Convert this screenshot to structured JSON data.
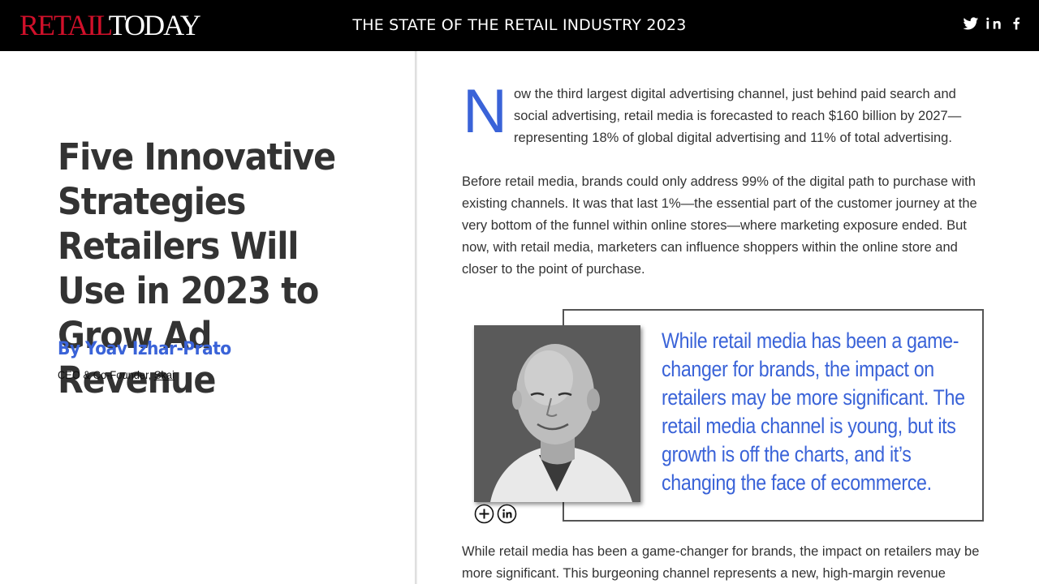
{
  "header": {
    "logo_retail": "RETAIL",
    "logo_today": "TODAY",
    "title": "THE STATE OF THE RETAIL INDUSTRY 2023",
    "social_icons": [
      "twitter-icon",
      "linkedin-icon",
      "facebook-icon"
    ]
  },
  "article": {
    "title": "Five Innovative Strategies Retailers Will Use in 2023 to Grow Ad Revenue",
    "author": "By Yoav Izhar-Prato",
    "role_prefix": "CEO & Co-Founder, ",
    "company": "Skai"
  },
  "body": {
    "dropcap": "N",
    "p1": "ow the third largest digital advertising channel, just behind paid search and social advertising, retail media is forecasted to reach $160 billion by 2027—representing 18% of global digital advertising and 11% of total advertising.",
    "p2": "Before retail media, brands could only address 99% of the digital path to purchase with existing channels. It was that last 1%—the essential part of the customer journey at the very bottom of the funnel within online stores—where marketing exposure ended. But now, with retail media, marketers can influence shoppers within the online store and closer to the point of purchase.",
    "p3": "While retail media has been a game-changer for brands, the impact on retailers may be more significant. This burgeoning channel represents a new, high-margin revenue stream"
  },
  "pull_quote": {
    "text": "While retail media has been a game-changer for brands, the impact on retailers may be more significant. The retail media channel is young, but its growth is off the charts, and it’s changing the face of ecommerce."
  },
  "colors": {
    "accent": "#3a63d8",
    "logo_red": "#d0102a",
    "header_bg": "#000000"
  }
}
